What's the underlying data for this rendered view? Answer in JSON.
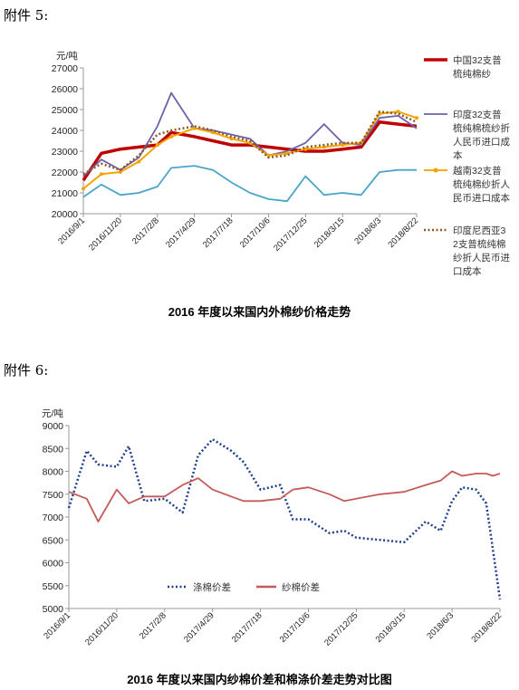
{
  "annex5_heading": "附件 5:",
  "annex6_heading": "附件 6:",
  "chart_data": [
    {
      "type": "line",
      "title": "2016 年度以来国内外棉纱价格走势",
      "unit": "元/吨",
      "ylim": [
        20000,
        27000
      ],
      "y_ticks": [
        20000,
        21000,
        22000,
        23000,
        24000,
        25000,
        26000,
        27000
      ],
      "x_ticks": [
        "2016/9/1",
        "2016/11/20",
        "2017/2/8",
        "2017/4/29",
        "2017/7/18",
        "2017/10/6",
        "2017/12/25",
        "2018/3/15",
        "2018/6/3",
        "2018/8/22"
      ],
      "x": [
        "2016/9/1",
        "2016/10/10",
        "2016/11/20",
        "2016/12/30",
        "2017/2/8",
        "2017/3/10",
        "2017/4/29",
        "2017/6/8",
        "2017/7/18",
        "2017/8/27",
        "2017/10/6",
        "2017/11/15",
        "2017/12/25",
        "2018/2/3",
        "2018/3/15",
        "2018/4/24",
        "2018/6/3",
        "2018/7/13",
        "2018/8/22"
      ],
      "legend_placement": "right",
      "grid": false,
      "series": [
        {
          "name": "中国32支普梳纯棉纱",
          "color": "#c00000",
          "style": "solid-thick",
          "values": [
            21600,
            22900,
            23100,
            23200,
            23300,
            23900,
            23700,
            23500,
            23300,
            23300,
            23200,
            23100,
            23000,
            23000,
            23100,
            23200,
            24400,
            24300,
            24200
          ]
        },
        {
          "name": "印度32支普梳纯棉梳纱折人民币进口成本",
          "color": "#7060a8",
          "style": "solid",
          "values": [
            21800,
            22600,
            22100,
            22700,
            24200,
            25800,
            24100,
            24000,
            23800,
            23600,
            22800,
            23000,
            23400,
            24300,
            23400,
            23300,
            24600,
            24700,
            24100
          ]
        },
        {
          "name": "越南32支普梳纯棉纱折人民币进口成本",
          "color": "#f4a300",
          "style": "dotted-markers",
          "values": [
            21200,
            21900,
            22000,
            22500,
            23300,
            23700,
            24100,
            23900,
            23600,
            23400,
            22800,
            22900,
            23100,
            23200,
            23300,
            23400,
            24800,
            24900,
            24600
          ]
        },
        {
          "name": "印度尼西亚32支普梳纯棉纱折人民币进口成本",
          "color": "#8b5a2b",
          "style": "dotted",
          "values": [
            21900,
            22400,
            22100,
            22800,
            23800,
            24000,
            24200,
            24000,
            23700,
            23500,
            22700,
            22800,
            23200,
            23300,
            23400,
            23400,
            24900,
            24800,
            24400
          ]
        },
        {
          "name": "",
          "color": "#4aa6c8",
          "style": "solid",
          "values": [
            20800,
            21400,
            20900,
            21000,
            21300,
            22200,
            22300,
            22100,
            21500,
            21000,
            20700,
            20600,
            21800,
            20900,
            21000,
            20900,
            22000,
            22100,
            22100
          ]
        }
      ]
    },
    {
      "type": "line",
      "title": "2016 年度以来国内纱棉价差和棉涤价差走势对比图",
      "unit": "元/吨",
      "ylim": [
        5000,
        9000
      ],
      "y_ticks": [
        5000,
        5500,
        6000,
        6500,
        7000,
        7500,
        8000,
        8500,
        9000
      ],
      "x_ticks": [
        "2016/9/1",
        "2016/11/20",
        "2017/2/8",
        "2017/4/29",
        "2017/7/18",
        "2017/10/6",
        "2017/12/25",
        "2018/3/15",
        "2018/6/3",
        "2018/8/22"
      ],
      "x": [
        "2016/9/1",
        "2016/10/1",
        "2016/10/20",
        "2016/11/20",
        "2016/12/10",
        "2017/1/5",
        "2017/2/8",
        "2017/3/10",
        "2017/4/5",
        "2017/4/29",
        "2017/5/30",
        "2017/6/20",
        "2017/7/18",
        "2017/8/20",
        "2017/9/10",
        "2017/10/6",
        "2017/11/10",
        "2017/12/5",
        "2017/12/25",
        "2018/2/3",
        "2018/3/15",
        "2018/4/20",
        "2018/5/15",
        "2018/6/3",
        "2018/6/20",
        "2018/7/13",
        "2018/7/30",
        "2018/8/10",
        "2018/8/22"
      ],
      "legend_placement": "bottom-left",
      "grid": false,
      "series": [
        {
          "name": "涤棉价差",
          "color": "#1f3f8c",
          "style": "dotted",
          "values": [
            7200,
            8450,
            8150,
            8100,
            8550,
            7350,
            7400,
            7100,
            8350,
            8700,
            8450,
            8200,
            7600,
            7700,
            6950,
            6950,
            6650,
            6700,
            6550,
            6500,
            6450,
            6900,
            6700,
            7350,
            7650,
            7600,
            7300,
            6300,
            5200
          ]
        },
        {
          "name": "纱棉价差",
          "color": "#c55a5a",
          "style": "solid",
          "values": [
            7550,
            7400,
            6900,
            7600,
            7300,
            7450,
            7450,
            7700,
            7850,
            7600,
            7450,
            7350,
            7350,
            7400,
            7600,
            7650,
            7500,
            7350,
            7400,
            7500,
            7550,
            7700,
            7800,
            8000,
            7900,
            7950,
            7950,
            7900,
            7950
          ]
        }
      ]
    }
  ]
}
